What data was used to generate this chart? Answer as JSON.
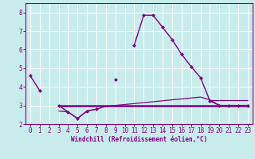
{
  "xlabel": "Windchill (Refroidissement éolien,°C)",
  "bg_color": "#c8ecec",
  "line_color": "#800080",
  "grid_color": "#ffffff",
  "hours": [
    0,
    1,
    2,
    3,
    4,
    5,
    6,
    7,
    8,
    9,
    10,
    11,
    12,
    13,
    14,
    15,
    16,
    17,
    18,
    19,
    20,
    21,
    22,
    23
  ],
  "main_line": [
    4.6,
    3.8,
    null,
    3.0,
    2.65,
    2.3,
    2.7,
    2.8,
    null,
    4.4,
    null,
    6.25,
    7.85,
    7.85,
    7.2,
    6.55,
    5.75,
    5.1,
    4.5,
    3.25,
    3.0,
    3.0,
    3.0,
    3.0
  ],
  "flat_line1_x": [
    3,
    4,
    5,
    6,
    7,
    8,
    9,
    10,
    11,
    12,
    13,
    14,
    15,
    16,
    17,
    18,
    19,
    20,
    21,
    22,
    23
  ],
  "flat_line1_y": [
    3.0,
    3.0,
    3.0,
    3.0,
    3.0,
    3.0,
    3.0,
    3.0,
    3.0,
    3.0,
    3.0,
    3.0,
    3.0,
    3.0,
    3.0,
    3.0,
    3.0,
    3.0,
    3.0,
    3.0,
    3.0
  ],
  "rising_line_x": [
    3,
    4,
    5,
    6,
    7,
    8,
    9,
    10,
    11,
    12,
    13,
    14,
    15,
    16,
    17,
    18,
    19,
    20,
    21,
    22,
    23
  ],
  "rising_line_y": [
    2.7,
    2.65,
    2.3,
    2.7,
    2.8,
    2.95,
    3.0,
    3.05,
    3.1,
    3.15,
    3.2,
    3.25,
    3.3,
    3.35,
    3.4,
    3.45,
    3.3,
    3.0,
    3.0,
    3.0,
    3.0
  ],
  "flat_line2_x": [
    19,
    20,
    21,
    22,
    23
  ],
  "flat_line2_y": [
    3.3,
    3.3,
    3.3,
    3.3,
    3.3
  ],
  "ylim": [
    2.0,
    8.5
  ],
  "xlim": [
    -0.5,
    23.5
  ],
  "yticks": [
    2,
    3,
    4,
    5,
    6,
    7,
    8
  ],
  "xticks": [
    0,
    1,
    2,
    3,
    4,
    5,
    6,
    7,
    8,
    9,
    10,
    11,
    12,
    13,
    14,
    15,
    16,
    17,
    18,
    19,
    20,
    21,
    22,
    23
  ],
  "tick_fontsize": 5.5,
  "xlabel_fontsize": 5.5
}
